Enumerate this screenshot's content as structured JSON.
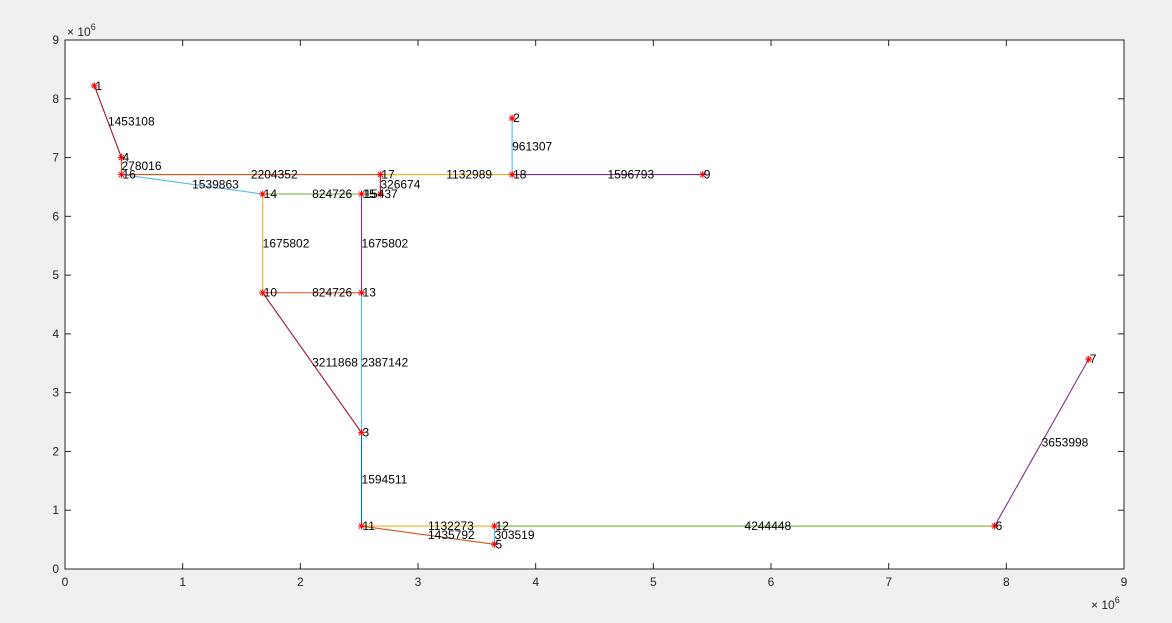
{
  "chart_data": {
    "type": "graph",
    "title": "",
    "xlabel": "",
    "ylabel": "",
    "xlim": [
      0,
      9000000
    ],
    "ylim": [
      0,
      9000000
    ],
    "x_tick_labels": [
      "0",
      "1",
      "2",
      "3",
      "4",
      "5",
      "6",
      "7",
      "8",
      "9"
    ],
    "y_tick_labels": [
      "0",
      "1",
      "2",
      "3",
      "4",
      "5",
      "6",
      "7",
      "8",
      "9"
    ],
    "x_exponent_label": "× 10",
    "x_exponent_power": "6",
    "y_exponent_label": "× 10",
    "y_exponent_power": "6",
    "grid": false,
    "node_marker": "red-asterisk",
    "nodes": [
      {
        "id": "1",
        "x": 250000,
        "y": 8220000
      },
      {
        "id": "2",
        "x": 3800000,
        "y": 7670000
      },
      {
        "id": "3",
        "x": 2520000,
        "y": 2320000
      },
      {
        "id": "4",
        "x": 480000,
        "y": 7000000
      },
      {
        "id": "5",
        "x": 3650000,
        "y": 420000
      },
      {
        "id": "6",
        "x": 7900000,
        "y": 730000
      },
      {
        "id": "7",
        "x": 8700000,
        "y": 3570000
      },
      {
        "id": "9",
        "x": 5420000,
        "y": 6710000
      },
      {
        "id": "10",
        "x": 1680000,
        "y": 4700000
      },
      {
        "id": "11",
        "x": 2520000,
        "y": 730000
      },
      {
        "id": "12",
        "x": 3650000,
        "y": 730000
      },
      {
        "id": "13",
        "x": 2520000,
        "y": 4700000
      },
      {
        "id": "14",
        "x": 1680000,
        "y": 6380000
      },
      {
        "id": "15",
        "x": 2520000,
        "y": 6380000
      },
      {
        "id": "16",
        "x": 480000,
        "y": 6710000
      },
      {
        "id": "17",
        "x": 2680000,
        "y": 6710000
      },
      {
        "id": "18",
        "x": 3800000,
        "y": 6710000
      },
      {
        "id": "19",
        "x": 2680000,
        "y": 6380000
      }
    ],
    "node_labels": [
      {
        "text": "1",
        "x": 250000,
        "y": 8220000
      },
      {
        "text": "2",
        "x": 3800000,
        "y": 7670000
      },
      {
        "text": "3",
        "x": 2520000,
        "y": 2320000
      },
      {
        "text": "4",
        "x": 480000,
        "y": 7000000
      },
      {
        "text": "5",
        "x": 3650000,
        "y": 420000
      },
      {
        "text": "6",
        "x": 7900000,
        "y": 730000
      },
      {
        "text": "7",
        "x": 8700000,
        "y": 3570000
      },
      {
        "text": "9",
        "x": 5420000,
        "y": 6710000
      },
      {
        "text": "10",
        "x": 1680000,
        "y": 4700000
      },
      {
        "text": "11",
        "x": 2520000,
        "y": 730000
      },
      {
        "text": "12",
        "x": 3650000,
        "y": 730000
      },
      {
        "text": "13",
        "x": 2520000,
        "y": 4700000
      },
      {
        "text": "14",
        "x": 1680000,
        "y": 6380000
      },
      {
        "text": "15",
        "x": 2520000,
        "y": 6380000
      },
      {
        "text": "16",
        "x": 480000,
        "y": 6710000
      },
      {
        "text": "17",
        "x": 2680000,
        "y": 6710000
      },
      {
        "text": "18",
        "x": 3800000,
        "y": 6710000
      }
    ],
    "edges": [
      {
        "from": "1",
        "to": "4",
        "weight": "1453108",
        "color": "#A2142F"
      },
      {
        "from": "4",
        "to": "16",
        "weight": "278016",
        "color": "#D95319"
      },
      {
        "from": "16",
        "to": "17",
        "weight": "2204352",
        "color": "#D95319"
      },
      {
        "from": "16",
        "to": "14",
        "weight": "1539863",
        "color": "#4DBEEE"
      },
      {
        "from": "14",
        "to": "15",
        "weight": "824726",
        "color": "#77AC30"
      },
      {
        "from": "15",
        "to": "19",
        "weight": "",
        "color": "#77AC30"
      },
      {
        "from": "17",
        "to": "19",
        "weight": "326674",
        "color": "#A2142F"
      },
      {
        "from": "17",
        "to": "18",
        "weight": "1132989",
        "color": "#EDB120"
      },
      {
        "from": "18",
        "to": "2",
        "weight": "961307",
        "color": "#4DBEEE"
      },
      {
        "from": "18",
        "to": "9",
        "weight": "1596793",
        "color": "#7E2F8E"
      },
      {
        "from": "14",
        "to": "10",
        "weight": "1675802",
        "color": "#EDB120"
      },
      {
        "from": "15",
        "to": "13",
        "weight": "1675802",
        "color": "#7E2F8E"
      },
      {
        "from": "10",
        "to": "13",
        "weight": "824726",
        "color": "#D95319"
      },
      {
        "from": "10",
        "to": "3",
        "weight": "3211868",
        "color": "#A2142F"
      },
      {
        "from": "13",
        "to": "3",
        "weight": "2387142",
        "color": "#4DBEEE"
      },
      {
        "from": "3",
        "to": "11",
        "weight": "1594511",
        "color": "#0072BD"
      },
      {
        "from": "11",
        "to": "12",
        "weight": "1132273",
        "color": "#EDB120"
      },
      {
        "from": "11",
        "to": "5",
        "weight": "1435792",
        "color": "#D95319"
      },
      {
        "from": "12",
        "to": "5",
        "weight": "303519",
        "color": "#4DBEEE"
      },
      {
        "from": "12",
        "to": "6",
        "weight": "4244448",
        "color": "#77AC30"
      },
      {
        "from": "6",
        "to": "7",
        "weight": "3653998",
        "color": "#7E2F8E"
      }
    ],
    "overlap_label": {
      "text": "15437",
      "x": 2680000,
      "y": 6380000
    }
  }
}
